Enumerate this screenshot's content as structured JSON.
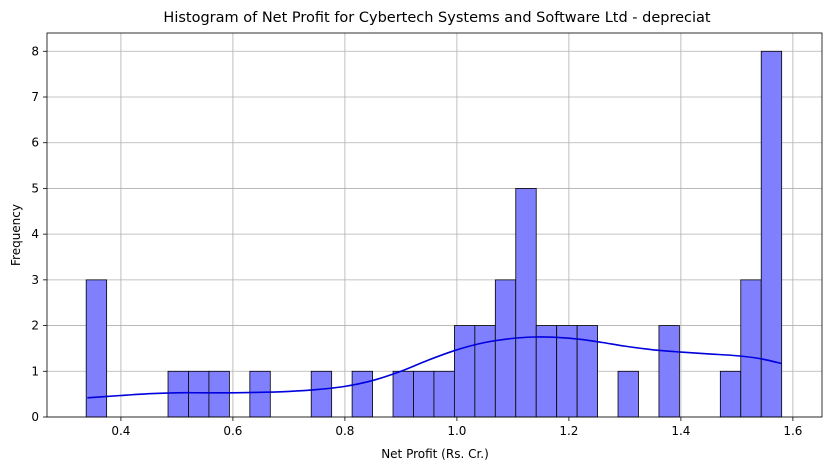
{
  "chart_data": {
    "type": "bar",
    "title": "Histogram of Net Profit for Cybertech Systems and Software Ltd - depreciat",
    "xlabel": "Net Profit (Rs. Cr.)",
    "ylabel": "Frequency",
    "xlim": [
      0.268,
      1.652
    ],
    "ylim": [
      0,
      8.4
    ],
    "grid": true,
    "bar_color": "#8080ff",
    "line_color": "#0000dd",
    "x_ticks": [
      0.4,
      0.6,
      0.8,
      1.0,
      1.2,
      1.4,
      1.6
    ],
    "x_tick_labels": [
      "0.4",
      "0.6",
      "0.8",
      "1.0",
      "1.2",
      "1.4",
      "1.6"
    ],
    "y_ticks": [
      0,
      1,
      2,
      3,
      4,
      5,
      6,
      7,
      8
    ],
    "y_tick_labels": [
      "0",
      "1",
      "2",
      "3",
      "4",
      "5",
      "6",
      "7",
      "8"
    ],
    "bin_width": 0.04,
    "bins": [
      {
        "x0": 0.333,
        "count": 3
      },
      {
        "x0": 0.373,
        "count": 0
      },
      {
        "x0": 0.413,
        "count": 0
      },
      {
        "x0": 0.453,
        "count": 0
      },
      {
        "x0": 0.493,
        "count": 1
      },
      {
        "x0": 0.533,
        "count": 1
      },
      {
        "x0": 0.573,
        "count": 1
      },
      {
        "x0": 0.613,
        "count": 0
      },
      {
        "x0": 0.653,
        "count": 1
      },
      {
        "x0": 0.693,
        "count": 0
      },
      {
        "x0": 0.733,
        "count": 0
      },
      {
        "x0": 0.773,
        "count": 1
      },
      {
        "x0": 0.813,
        "count": 0
      },
      {
        "x0": 0.853,
        "count": 1
      },
      {
        "x0": 0.893,
        "count": 0
      },
      {
        "x0": 0.933,
        "count": 1
      },
      {
        "x0": 0.973,
        "count": 1
      },
      {
        "x0": 1.013,
        "count": 1
      },
      {
        "x0": 1.053,
        "count": 2
      },
      {
        "x0": 1.093,
        "count": 2
      },
      {
        "x0": 1.133,
        "count": 3
      },
      {
        "x0": 1.173,
        "count": 5
      },
      {
        "x0": 1.213,
        "count": 2
      },
      {
        "x0": 1.253,
        "count": 2
      },
      {
        "x0": 1.293,
        "count": 2
      },
      {
        "x0": 1.333,
        "count": 0
      },
      {
        "x0": 1.373,
        "count": 1
      },
      {
        "x0": 1.413,
        "count": 0
      },
      {
        "x0": 1.453,
        "count": 2
      },
      {
        "x0": 1.493,
        "count": 0
      },
      {
        "x0": 1.533,
        "count": 0
      },
      {
        "x0": 1.573,
        "count": 1
      },
      {
        "x0": 1.613,
        "count": 3
      },
      {
        "x0": 1.653,
        "count": 8
      }
    ],
    "kde": {
      "x": [
        0.34,
        0.4,
        0.45,
        0.5,
        0.55,
        0.6,
        0.65,
        0.7,
        0.75,
        0.8,
        0.85,
        0.9,
        0.95,
        1.0,
        1.05,
        1.1,
        1.14,
        1.18,
        1.22,
        1.26,
        1.3,
        1.35,
        1.4,
        1.45,
        1.5,
        1.54,
        1.58
      ],
      "y": [
        0.42,
        0.47,
        0.51,
        0.53,
        0.53,
        0.53,
        0.54,
        0.56,
        0.6,
        0.67,
        0.8,
        1.0,
        1.25,
        1.47,
        1.63,
        1.72,
        1.75,
        1.74,
        1.7,
        1.63,
        1.55,
        1.47,
        1.42,
        1.38,
        1.34,
        1.28,
        1.17
      ]
    }
  }
}
